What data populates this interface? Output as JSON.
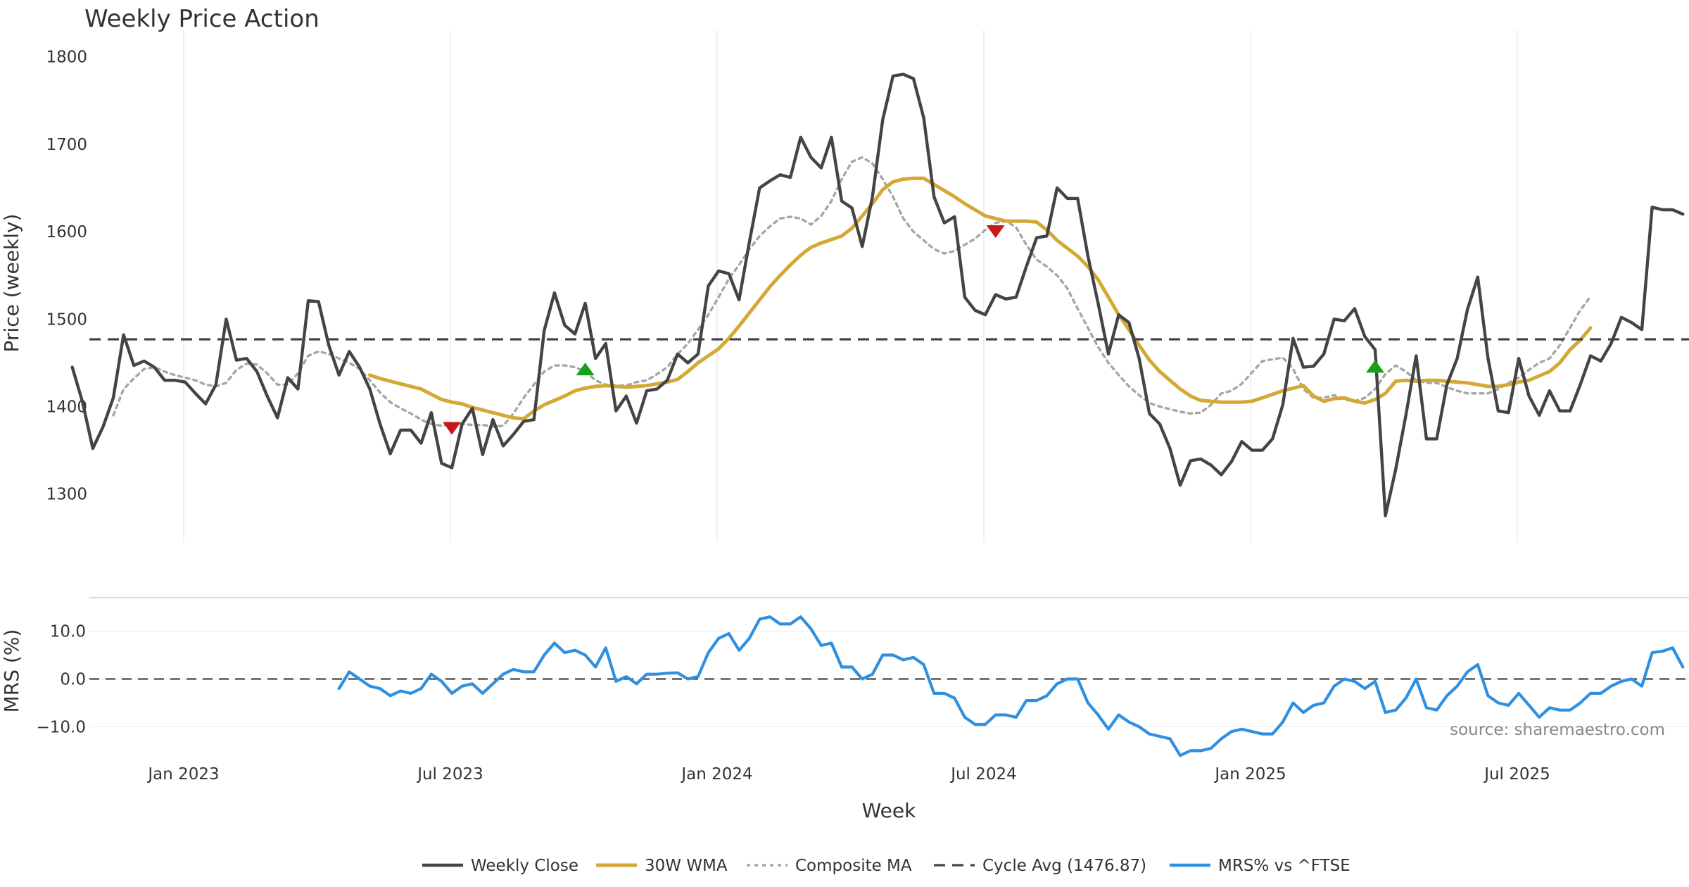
{
  "chart_data": {
    "type": "line",
    "title": "Weekly Price Action",
    "xlabel": "Week",
    "x_ticks": [
      "Jan 2023",
      "Jul 2023",
      "Jan 2024",
      "Jul 2024",
      "Jan 2025",
      "Jul 2025"
    ],
    "source": "source: sharemaestro.com",
    "price_panel": {
      "ylabel": "Price (weekly)",
      "ylim": [
        1245,
        1815
      ],
      "yticks": [
        1300,
        1400,
        1500,
        1600,
        1700,
        1800
      ],
      "grid": "vertical-only",
      "start_week": "2022-10-17",
      "series": [
        {
          "name": "Weekly Close",
          "color": "#444444",
          "style": "solid",
          "values": [
            1445,
            1405,
            1352,
            1377,
            1410,
            1482,
            1447,
            1452,
            1445,
            1430,
            1430,
            1428,
            1415,
            1403,
            1425,
            1500,
            1453,
            1455,
            1440,
            1412,
            1387,
            1433,
            1420,
            1521,
            1520,
            1470,
            1436,
            1463,
            1445,
            1420,
            1380,
            1346,
            1373,
            1373,
            1358,
            1393,
            1335,
            1330,
            1380,
            1398,
            1345,
            1385,
            1355,
            1368,
            1383,
            1385,
            1487,
            1530,
            1493,
            1483,
            1518,
            1455,
            1472,
            1395,
            1412,
            1381,
            1418,
            1420,
            1430,
            1460,
            1450,
            1460,
            1538,
            1555,
            1552,
            1522,
            1588,
            1650,
            1658,
            1665,
            1662,
            1708,
            1685,
            1673,
            1708,
            1635,
            1627,
            1583,
            1640,
            1728,
            1778,
            1780,
            1775,
            1730,
            1640,
            1610,
            1617,
            1525,
            1510,
            1505,
            1528,
            1523,
            1525,
            1560,
            1593,
            1595,
            1650,
            1638,
            1638,
            1572,
            1518,
            1460,
            1505,
            1496,
            1455,
            1392,
            1380,
            1352,
            1310,
            1338,
            1340,
            1333,
            1322,
            1337,
            1360,
            1350,
            1350,
            1363,
            1402,
            1478,
            1445,
            1446,
            1460,
            1500,
            1498,
            1512,
            1480,
            1465,
            1275,
            1328,
            1390,
            1458,
            1363,
            1363,
            1425,
            1455,
            1511,
            1548,
            1455,
            1395,
            1393,
            1455,
            1412,
            1390,
            1418,
            1395,
            1395,
            1425,
            1458,
            1452,
            1472,
            1502,
            1496,
            1488,
            1628,
            1625,
            1625,
            1620
          ]
        },
        {
          "name": "30W WMA",
          "color": "#d4a833",
          "style": "solid",
          "start_index": 29,
          "values": [
            1436,
            1432,
            1429,
            1426,
            1423,
            1420,
            1414,
            1408,
            1405,
            1403,
            1399,
            1396,
            1393,
            1390,
            1387,
            1386,
            1395,
            1402,
            1407,
            1412,
            1418,
            1421,
            1423,
            1424,
            1423,
            1422,
            1423,
            1424,
            1426,
            1428,
            1431,
            1440,
            1450,
            1458,
            1466,
            1478,
            1492,
            1507,
            1522,
            1537,
            1550,
            1562,
            1573,
            1582,
            1587,
            1591,
            1595,
            1604,
            1618,
            1632,
            1648,
            1657,
            1660,
            1661,
            1661,
            1654,
            1647,
            1640,
            1632,
            1625,
            1618,
            1615,
            1612,
            1612,
            1612,
            1611,
            1602,
            1590,
            1581,
            1572,
            1560,
            1545,
            1525,
            1505,
            1488,
            1470,
            1453,
            1440,
            1430,
            1420,
            1412,
            1407,
            1406,
            1405,
            1405,
            1405,
            1406,
            1410,
            1414,
            1418,
            1421,
            1424,
            1412,
            1406,
            1409,
            1410,
            1406,
            1404,
            1408,
            1415,
            1429,
            1430,
            1429,
            1430,
            1430,
            1429,
            1428,
            1427,
            1425,
            1423,
            1423,
            1425,
            1428,
            1430,
            1435,
            1440,
            1450,
            1465,
            1476,
            1490
          ]
        },
        {
          "name": "Composite MA",
          "color": "#a6a6a6",
          "style": "dotted",
          "start_index": 4,
          "values": [
            1390,
            1420,
            1432,
            1443,
            1445,
            1440,
            1436,
            1433,
            1430,
            1425,
            1423,
            1427,
            1442,
            1449,
            1448,
            1438,
            1425,
            1425,
            1438,
            1458,
            1463,
            1460,
            1455,
            1450,
            1443,
            1430,
            1416,
            1405,
            1398,
            1392,
            1385,
            1380,
            1378,
            1380,
            1380,
            1379,
            1379,
            1377,
            1378,
            1392,
            1410,
            1425,
            1440,
            1447,
            1447,
            1445,
            1440,
            1430,
            1425,
            1424,
            1424,
            1428,
            1430,
            1437,
            1445,
            1460,
            1472,
            1488,
            1505,
            1525,
            1546,
            1562,
            1580,
            1595,
            1606,
            1615,
            1617,
            1615,
            1608,
            1618,
            1635,
            1660,
            1680,
            1685,
            1678,
            1660,
            1640,
            1615,
            1600,
            1590,
            1580,
            1575,
            1578,
            1585,
            1592,
            1602,
            1610,
            1612,
            1605,
            1585,
            1568,
            1560,
            1550,
            1535,
            1512,
            1490,
            1468,
            1450,
            1436,
            1423,
            1413,
            1404,
            1400,
            1397,
            1394,
            1392,
            1393,
            1402,
            1415,
            1418,
            1426,
            1439,
            1452,
            1454,
            1456,
            1443,
            1420,
            1410,
            1410,
            1413,
            1408,
            1406,
            1410,
            1420,
            1437,
            1447,
            1440,
            1430,
            1427,
            1427,
            1422,
            1418,
            1415,
            1415,
            1415,
            1420,
            1427,
            1433,
            1442,
            1450,
            1455,
            1470,
            1490,
            1510,
            1526
          ]
        },
        {
          "name": "Cycle Avg (1476.87)",
          "color": "#444444",
          "style": "dashed",
          "value": 1476.87
        }
      ],
      "markers": [
        {
          "type": "sell",
          "index": 37,
          "price": 1375,
          "color": "#c81818"
        },
        {
          "type": "buy",
          "index": 50,
          "price": 1443,
          "color": "#18a018"
        },
        {
          "type": "sell",
          "index": 90,
          "price": 1600,
          "color": "#c81818"
        },
        {
          "type": "buy",
          "index": 127,
          "price": 1446,
          "color": "#18a018"
        }
      ]
    },
    "mrs_panel": {
      "ylabel": "MRS (%)",
      "ylim": [
        -17,
        17
      ],
      "yticks": [
        10.0,
        0.0,
        -10.0
      ],
      "ytick_labels": [
        "10.0",
        "0.0",
        "−10.0"
      ],
      "series": [
        {
          "name": "MRS% vs ^FTSE",
          "color": "#2f8fe0",
          "style": "solid",
          "start_index": 26,
          "values": [
            -2,
            1.5,
            0,
            -1.5,
            -2,
            -3.5,
            -2.5,
            -3,
            -2,
            1,
            -0.5,
            -3,
            -1.5,
            -1,
            -3,
            -1,
            1,
            2,
            1.5,
            1.5,
            5,
            7.5,
            5.5,
            6,
            5,
            2.5,
            6.5,
            -0.5,
            0.5,
            -1,
            1,
            1,
            1.2,
            1.3,
            0,
            0.5,
            5.5,
            8.5,
            9.5,
            6,
            8.5,
            12.5,
            13,
            11.5,
            11.5,
            13,
            10.5,
            7,
            7.5,
            2.5,
            2.5,
            0,
            1,
            5,
            5,
            4,
            4.5,
            3,
            -3,
            -3,
            -4,
            -8,
            -9.5,
            -9.5,
            -7.5,
            -7.5,
            -8,
            -4.5,
            -4.5,
            -3.5,
            -1,
            0,
            0,
            -5,
            -7.5,
            -10.5,
            -7.5,
            -9,
            -10,
            -11.5,
            -12,
            -12.5,
            -16,
            -15,
            -15,
            -14.5,
            -12.5,
            -11,
            -10.5,
            -11,
            -11.5,
            -11.5,
            -9,
            -5,
            -7,
            -5.5,
            -5,
            -1.5,
            0,
            -0.5,
            -2,
            -0.5,
            -7,
            -6.5,
            -4,
            0,
            -6,
            -6.5,
            -3.5,
            -1.5,
            1.5,
            3,
            -3.5,
            -5,
            -5.5,
            -3,
            -5.5,
            -8,
            -6,
            -6.5,
            -6.5,
            -5,
            -3,
            -3,
            -1.5,
            -0.5,
            0,
            -1.5,
            5.5,
            5.8,
            6.5,
            2.5
          ]
        }
      ]
    },
    "legend": {
      "position": "bottom-center",
      "entries": [
        "Weekly Close",
        "30W WMA",
        "Composite MA",
        "Cycle Avg (1476.87)",
        "MRS% vs ^FTSE"
      ]
    }
  }
}
